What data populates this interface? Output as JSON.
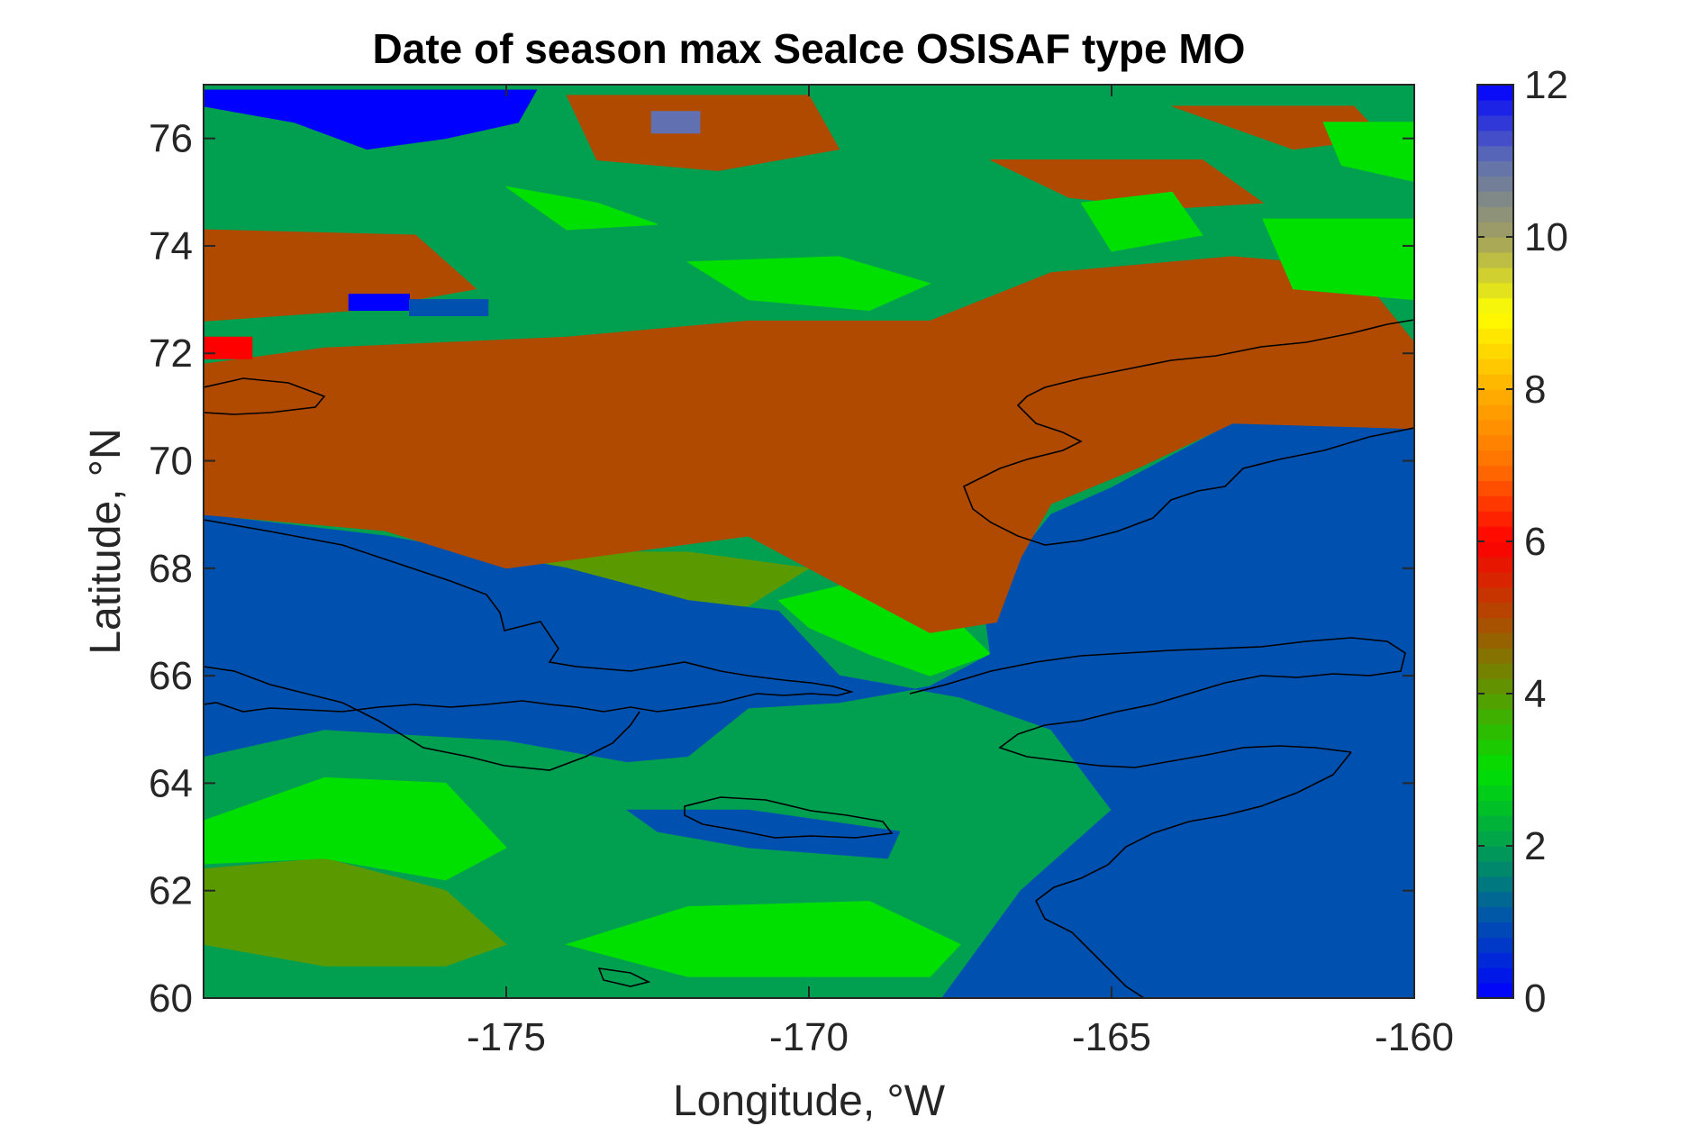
{
  "chart_data": {
    "type": "heatmap",
    "title": "Date of season max SeaIce OSISAF type MO",
    "xlabel": "Longitude, °W",
    "ylabel": "Latitude, °N",
    "xlim": [
      -180,
      -160
    ],
    "ylim": [
      60,
      77
    ],
    "x_ticks": [
      -175,
      -170,
      -165,
      -160
    ],
    "x_tick_labels": [
      "-175",
      "-170",
      "-165",
      "-160"
    ],
    "y_ticks": [
      60,
      62,
      64,
      66,
      68,
      70,
      72,
      74,
      76
    ],
    "y_tick_labels": [
      "60",
      "62",
      "64",
      "66",
      "68",
      "70",
      "72",
      "74",
      "76"
    ],
    "colorbar": {
      "range": [
        0,
        12
      ],
      "ticks": [
        0,
        2,
        4,
        6,
        8,
        10,
        12
      ],
      "tick_labels": [
        "0",
        "2",
        "4",
        "6",
        "8",
        "10",
        "12"
      ],
      "colormap": [
        {
          "v": 0,
          "c": "#0000ff"
        },
        {
          "v": 1,
          "c": "#0050b0"
        },
        {
          "v": 2,
          "c": "#00a050"
        },
        {
          "v": 3,
          "c": "#00e000"
        },
        {
          "v": 4,
          "c": "#5a9a00"
        },
        {
          "v": 5,
          "c": "#b04a00"
        },
        {
          "v": 6,
          "c": "#ff0000"
        },
        {
          "v": 7,
          "c": "#ff7000"
        },
        {
          "v": 8,
          "c": "#ffb000"
        },
        {
          "v": 9,
          "c": "#ffff00"
        },
        {
          "v": 10,
          "c": "#a0a060"
        },
        {
          "v": 11,
          "c": "#6070b0"
        },
        {
          "v": 12,
          "c": "#0000ff"
        }
      ]
    },
    "regions": [
      {
        "value": 2,
        "polygon": [
          [
            -180,
            60
          ],
          [
            -180,
            64.5
          ],
          [
            -178,
            65
          ],
          [
            -175,
            65
          ],
          [
            -172,
            64.6
          ],
          [
            -170,
            65.7
          ],
          [
            -168,
            65.4
          ],
          [
            -166.5,
            64.2
          ],
          [
            -166.5,
            62
          ],
          [
            -167.5,
            60
          ],
          [
            -180,
            60
          ]
        ]
      },
      {
        "value": 4,
        "polygon": [
          [
            -180,
            61
          ],
          [
            -180,
            62.4
          ],
          [
            -178,
            62.6
          ],
          [
            -176,
            62
          ],
          [
            -175,
            61
          ],
          [
            -176,
            60.6
          ],
          [
            -178,
            60.6
          ],
          [
            -180,
            61
          ]
        ]
      },
      {
        "value": 3,
        "polygon": [
          [
            -180,
            62.5
          ],
          [
            -180,
            63.3
          ],
          [
            -178,
            64.1
          ],
          [
            -176,
            64
          ],
          [
            -175,
            62.8
          ],
          [
            -176,
            62.2
          ],
          [
            -178,
            62.6
          ],
          [
            -180,
            62.5
          ]
        ]
      },
      {
        "value": 3,
        "polygon": [
          [
            -174,
            61
          ],
          [
            -172,
            60.4
          ],
          [
            -168,
            60.4
          ],
          [
            -167.5,
            61
          ],
          [
            -169,
            61.8
          ],
          [
            -172,
            61.7
          ],
          [
            -174,
            61
          ]
        ]
      },
      {
        "value": 3,
        "polygon": [
          [
            -170.5,
            67.4
          ],
          [
            -169,
            67.8
          ],
          [
            -168,
            67.5
          ],
          [
            -167,
            66.4
          ],
          [
            -168,
            66
          ],
          [
            -169,
            66.4
          ],
          [
            -170,
            66.9
          ],
          [
            -170.5,
            67.4
          ]
        ]
      },
      {
        "value": 4,
        "polygon": [
          [
            -175,
            67.6
          ],
          [
            -173,
            67.3
          ],
          [
            -171,
            67.3
          ],
          [
            -170,
            68
          ],
          [
            -172,
            68.3
          ],
          [
            -174,
            68.3
          ],
          [
            -175,
            67.6
          ]
        ]
      },
      {
        "value": 1,
        "polygon": [
          [
            -180,
            64.5
          ],
          [
            -180,
            69
          ],
          [
            -177,
            68.6
          ],
          [
            -174,
            68
          ],
          [
            -172,
            67.4
          ],
          [
            -170.5,
            67.2
          ],
          [
            -169.5,
            66
          ],
          [
            -167.5,
            65.6
          ],
          [
            -166,
            65
          ],
          [
            -165,
            63.5
          ],
          [
            -166.5,
            62
          ],
          [
            -167.8,
            60
          ],
          [
            -160,
            60
          ],
          [
            -160,
            70.6
          ],
          [
            -163,
            70.7
          ],
          [
            -164,
            70.1
          ],
          [
            -165,
            69.5
          ],
          [
            -166,
            69
          ],
          [
            -166.5,
            68.3
          ],
          [
            -167.2,
            68
          ],
          [
            -167,
            66.4
          ],
          [
            -168,
            65.8
          ],
          [
            -169.5,
            65.5
          ],
          [
            -171,
            65.4
          ],
          [
            -172,
            64.5
          ],
          [
            -173,
            64.4
          ],
          [
            -175,
            64.8
          ],
          [
            -178,
            65
          ],
          [
            -180,
            64.5
          ]
        ]
      },
      {
        "value": 1,
        "polygon": [
          [
            -173,
            63.5
          ],
          [
            -171,
            63.5
          ],
          [
            -168.5,
            63.1
          ],
          [
            -168.7,
            62.6
          ],
          [
            -171,
            62.8
          ],
          [
            -172.5,
            63.1
          ],
          [
            -173,
            63.5
          ]
        ]
      },
      {
        "value": 1,
        "polygon": [
          [
            -180,
            71
          ],
          [
            -177.5,
            71.6
          ],
          [
            -176.5,
            71.4
          ],
          [
            -177.5,
            70.9
          ],
          [
            -180,
            70.8
          ],
          [
            -180,
            71
          ]
        ]
      },
      {
        "value": 5,
        "polygon": [
          [
            -180,
            69
          ],
          [
            -180,
            71.8
          ],
          [
            -178,
            72.1
          ],
          [
            -174,
            72.3
          ],
          [
            -171,
            72.6
          ],
          [
            -168,
            72.6
          ],
          [
            -166,
            73.5
          ],
          [
            -163,
            73.8
          ],
          [
            -161,
            73.6
          ],
          [
            -160,
            72.2
          ],
          [
            -160,
            70.6
          ],
          [
            -163,
            70.7
          ],
          [
            -164.5,
            69.9
          ],
          [
            -166,
            69.2
          ],
          [
            -166.5,
            68.2
          ],
          [
            -166.9,
            67
          ],
          [
            -168,
            66.8
          ],
          [
            -170,
            68
          ],
          [
            -171,
            68.6
          ],
          [
            -173,
            68.3
          ],
          [
            -175,
            68
          ],
          [
            -177,
            68.7
          ],
          [
            -180,
            69
          ]
        ]
      },
      {
        "value": 5,
        "polygon": [
          [
            -180,
            72.6
          ],
          [
            -180,
            74.3
          ],
          [
            -176.5,
            74.2
          ],
          [
            -175.5,
            73.2
          ],
          [
            -177.5,
            72.8
          ],
          [
            -180,
            72.6
          ]
        ]
      },
      {
        "value": 5,
        "polygon": [
          [
            -174,
            76.8
          ],
          [
            -170,
            76.8
          ],
          [
            -169.5,
            75.8
          ],
          [
            -171.5,
            75.4
          ],
          [
            -173.5,
            75.6
          ],
          [
            -174,
            76.8
          ]
        ]
      },
      {
        "value": 5,
        "polygon": [
          [
            -167,
            75.6
          ],
          [
            -163.5,
            75.6
          ],
          [
            -162.5,
            74.8
          ],
          [
            -164,
            74.7
          ],
          [
            -165.7,
            74.9
          ],
          [
            -167,
            75.6
          ]
        ]
      },
      {
        "value": 5,
        "polygon": [
          [
            -164,
            76.6
          ],
          [
            -161,
            76.6
          ],
          [
            -160.5,
            76
          ],
          [
            -162,
            75.8
          ],
          [
            -164,
            76.6
          ]
        ]
      },
      {
        "value": 3,
        "polygon": [
          [
            -172,
            73.7
          ],
          [
            -169.5,
            73.8
          ],
          [
            -168,
            73.3
          ],
          [
            -169,
            72.8
          ],
          [
            -171,
            73
          ],
          [
            -172,
            73.7
          ]
        ]
      },
      {
        "value": 3,
        "polygon": [
          [
            -175,
            75.1
          ],
          [
            -173.5,
            74.8
          ],
          [
            -172.5,
            74.4
          ],
          [
            -174,
            74.3
          ],
          [
            -175,
            75.1
          ]
        ]
      },
      {
        "value": 3,
        "polygon": [
          [
            -165.5,
            74.8
          ],
          [
            -164,
            75
          ],
          [
            -163.5,
            74.2
          ],
          [
            -165,
            73.9
          ],
          [
            -165.5,
            74.8
          ]
        ]
      },
      {
        "value": 3,
        "polygon": [
          [
            -162.5,
            74.5
          ],
          [
            -160,
            74.5
          ],
          [
            -160,
            73
          ],
          [
            -162,
            73.2
          ],
          [
            -162.5,
            74.5
          ]
        ]
      },
      {
        "value": 3,
        "polygon": [
          [
            -161.5,
            76.3
          ],
          [
            -160,
            76.3
          ],
          [
            -160,
            75.2
          ],
          [
            -161.2,
            75.5
          ],
          [
            -161.5,
            76.3
          ]
        ]
      },
      {
        "value": 0,
        "polygon": [
          [
            -180,
            76.9
          ],
          [
            -174.5,
            76.9
          ],
          [
            -174.8,
            76.3
          ],
          [
            -176,
            76
          ],
          [
            -177.3,
            75.8
          ],
          [
            -178.5,
            76.3
          ],
          [
            -180,
            76.6
          ],
          [
            -180,
            76.9
          ]
        ]
      },
      {
        "value": 0,
        "polygon": [
          [
            -177.6,
            73.1
          ],
          [
            -176.6,
            73.1
          ],
          [
            -176.6,
            72.8
          ],
          [
            -177.6,
            72.8
          ],
          [
            -177.6,
            73.1
          ]
        ]
      },
      {
        "value": 1,
        "polygon": [
          [
            -176.6,
            73
          ],
          [
            -175.3,
            73
          ],
          [
            -175.3,
            72.7
          ],
          [
            -176.6,
            72.7
          ],
          [
            -176.6,
            73
          ]
        ]
      },
      {
        "value": 6,
        "polygon": [
          [
            -180,
            72.3
          ],
          [
            -179.2,
            72.3
          ],
          [
            -179.2,
            71.9
          ],
          [
            -180,
            71.9
          ],
          [
            -180,
            72.3
          ]
        ]
      },
      {
        "value": 11,
        "polygon": [
          [
            -172.6,
            76.5
          ],
          [
            -171.8,
            76.5
          ],
          [
            -171.8,
            76.1
          ],
          [
            -172.6,
            76.1
          ],
          [
            -172.6,
            76.5
          ]
        ]
      }
    ]
  }
}
